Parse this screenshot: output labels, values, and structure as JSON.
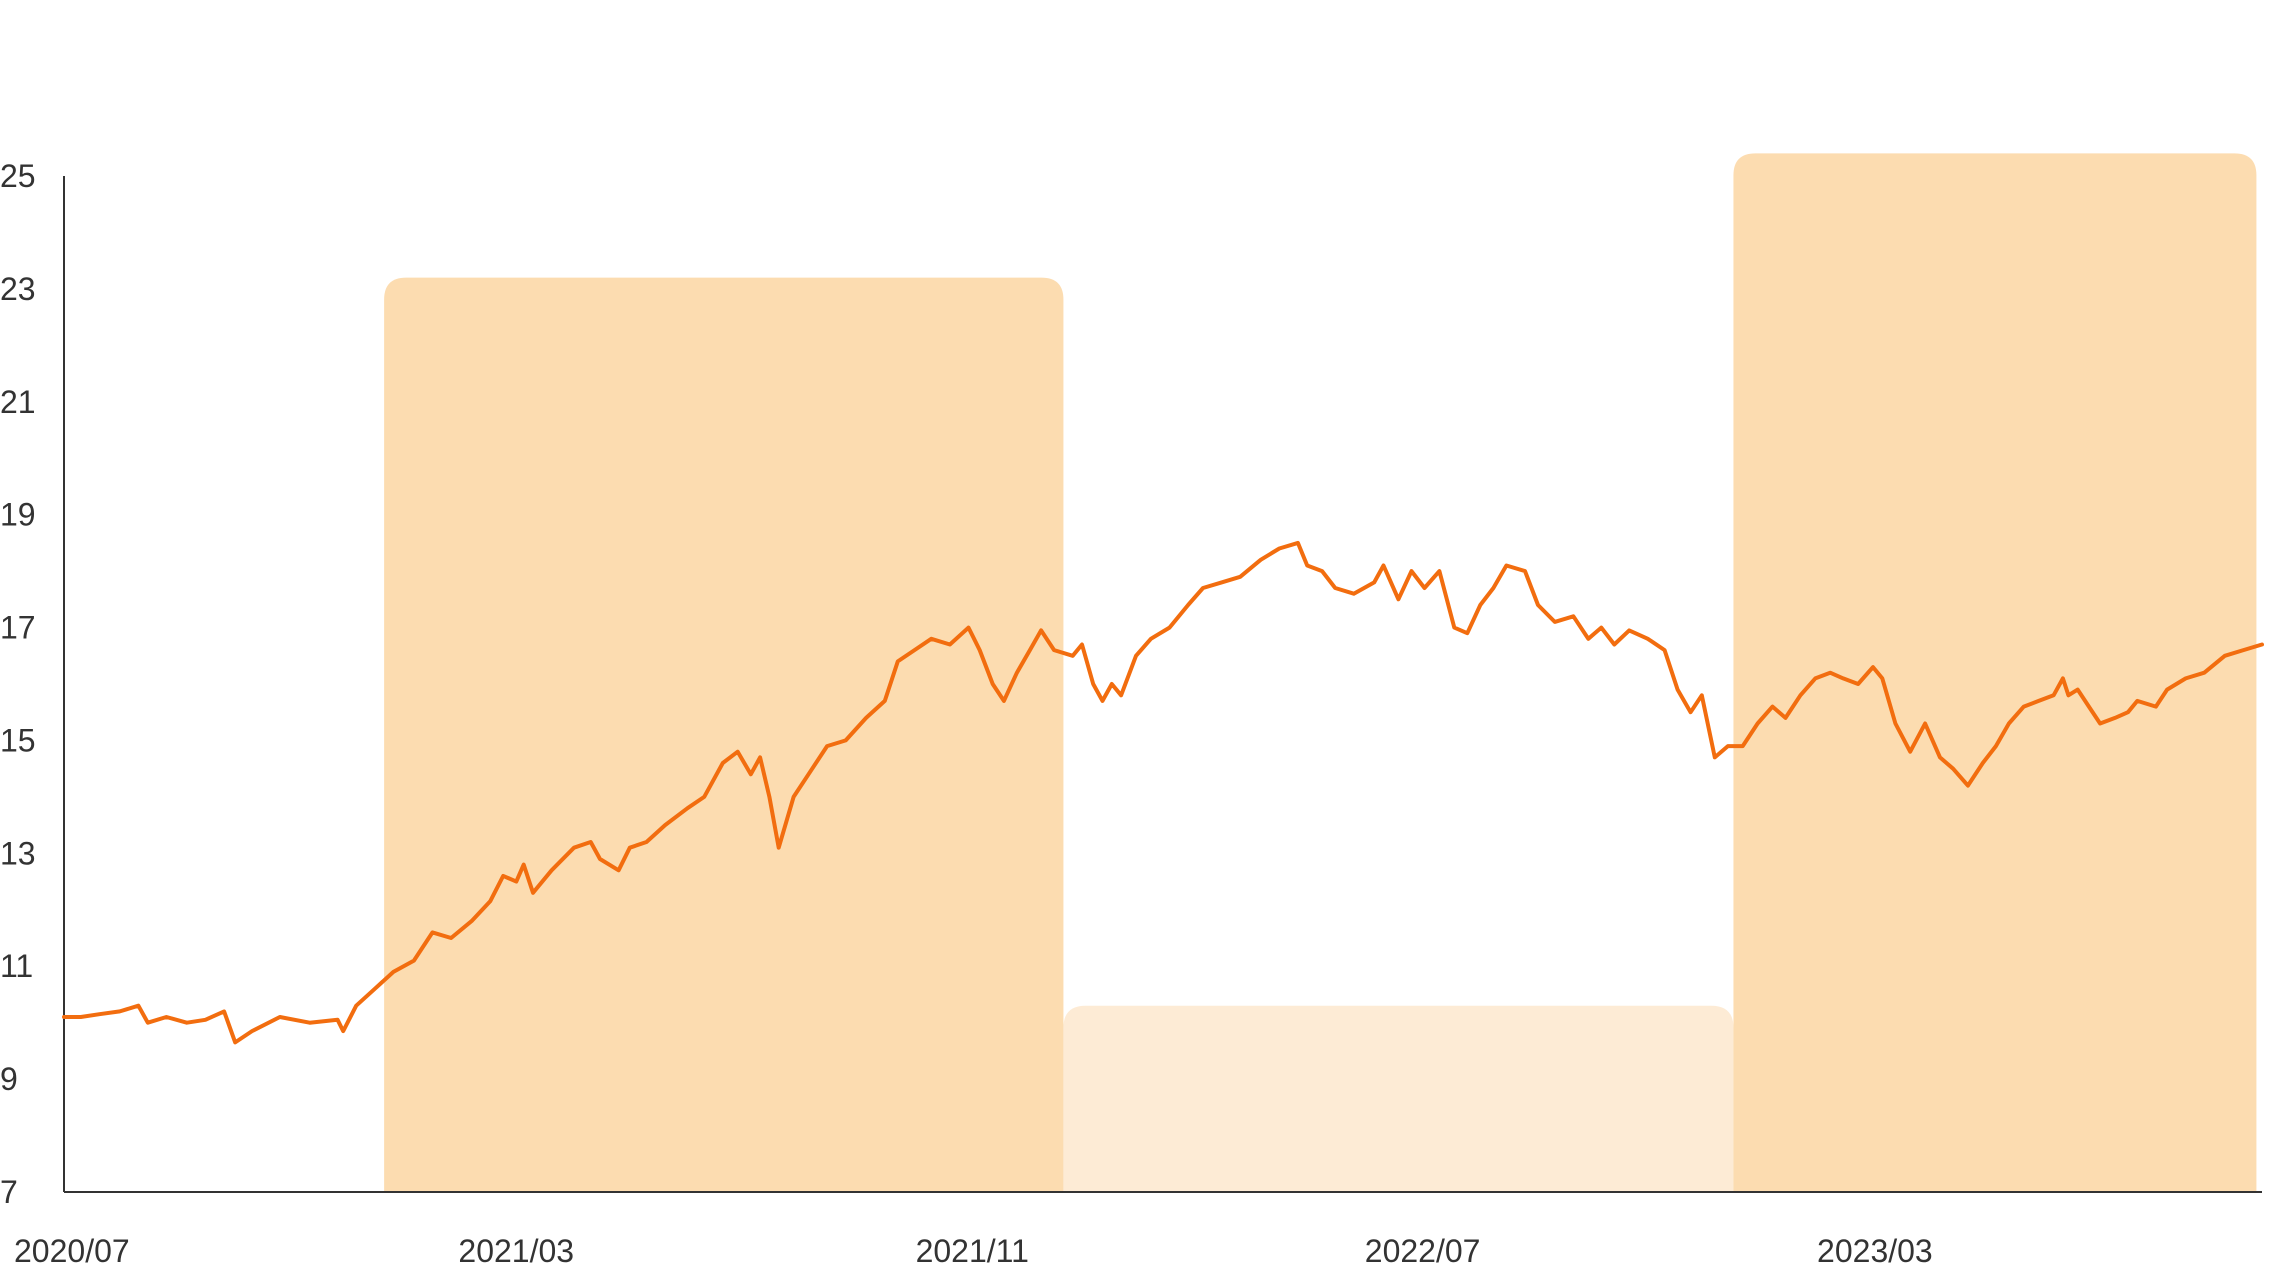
{
  "chart_data": {
    "type": "line",
    "title": "",
    "xlabel": "",
    "ylabel": "",
    "ylim": [
      7,
      25
    ],
    "y_ticks": [
      "25",
      "23",
      "21",
      "19",
      "17",
      "15",
      "13",
      "11",
      "9",
      "7"
    ],
    "x_ticks": [
      "2020/07",
      "2021/03",
      "2021/11",
      "2022/07",
      "2023/03"
    ],
    "x_range": [
      "2020-07-01",
      "2023-09-25"
    ],
    "grid": false,
    "legend": "none",
    "colors": {
      "line": "#f26d0f",
      "highlight_strong": "#fcdcb0",
      "highlight_light": "#fdebd5",
      "axis": "#333333",
      "text": "#333333"
    },
    "highlight_periods": [
      {
        "start": "2020-12-20",
        "end": "2021-12-20",
        "top": 23.2,
        "style": "strong"
      },
      {
        "start": "2021-12-20",
        "end": "2022-12-15",
        "top": 10.3,
        "style": "light"
      },
      {
        "start": "2022-12-15",
        "end": "2023-09-22",
        "top": 25.4,
        "style": "strong"
      }
    ],
    "series": [
      {
        "points": [
          [
            "2020-07-01",
            10.1
          ],
          [
            "2020-07-10",
            10.1
          ],
          [
            "2020-07-20",
            10.15
          ],
          [
            "2020-07-31",
            10.2
          ],
          [
            "2020-08-10",
            10.3
          ],
          [
            "2020-08-15",
            10.0
          ],
          [
            "2020-08-25",
            10.1
          ],
          [
            "2020-09-05",
            10.0
          ],
          [
            "2020-09-15",
            10.05
          ],
          [
            "2020-09-25",
            10.2
          ],
          [
            "2020-10-01",
            9.65
          ],
          [
            "2020-10-10",
            9.85
          ],
          [
            "2020-10-25",
            10.1
          ],
          [
            "2020-11-10",
            10.0
          ],
          [
            "2020-11-25",
            10.05
          ],
          [
            "2020-11-28",
            9.85
          ],
          [
            "2020-12-05",
            10.3
          ],
          [
            "2020-12-15",
            10.6
          ],
          [
            "2020-12-25",
            10.9
          ],
          [
            "2021-01-05",
            11.1
          ],
          [
            "2021-01-15",
            11.6
          ],
          [
            "2021-01-25",
            11.5
          ],
          [
            "2021-02-05",
            11.8
          ],
          [
            "2021-02-15",
            12.15
          ],
          [
            "2021-02-22",
            12.6
          ],
          [
            "2021-03-01",
            12.5
          ],
          [
            "2021-03-05",
            12.8
          ],
          [
            "2021-03-10",
            12.3
          ],
          [
            "2021-03-20",
            12.7
          ],
          [
            "2021-04-01",
            13.1
          ],
          [
            "2021-04-10",
            13.2
          ],
          [
            "2021-04-15",
            12.9
          ],
          [
            "2021-04-25",
            12.7
          ],
          [
            "2021-05-01",
            13.1
          ],
          [
            "2021-05-10",
            13.2
          ],
          [
            "2021-05-20",
            13.5
          ],
          [
            "2021-06-01",
            13.8
          ],
          [
            "2021-06-10",
            14.0
          ],
          [
            "2021-06-20",
            14.6
          ],
          [
            "2021-06-28",
            14.8
          ],
          [
            "2021-07-05",
            14.4
          ],
          [
            "2021-07-10",
            14.7
          ],
          [
            "2021-07-15",
            14.0
          ],
          [
            "2021-07-20",
            13.1
          ],
          [
            "2021-07-28",
            14.0
          ],
          [
            "2021-08-05",
            14.4
          ],
          [
            "2021-08-15",
            14.9
          ],
          [
            "2021-08-25",
            15.0
          ],
          [
            "2021-09-05",
            15.4
          ],
          [
            "2021-09-15",
            15.7
          ],
          [
            "2021-09-22",
            16.4
          ],
          [
            "2021-10-01",
            16.6
          ],
          [
            "2021-10-10",
            16.8
          ],
          [
            "2021-10-20",
            16.7
          ],
          [
            "2021-10-30",
            17.0
          ],
          [
            "2021-11-05",
            16.6
          ],
          [
            "2021-11-12",
            16.0
          ],
          [
            "2021-11-18",
            15.7
          ],
          [
            "2021-11-25",
            16.2
          ],
          [
            "2021-12-02",
            16.6
          ],
          [
            "2021-12-08",
            16.95
          ],
          [
            "2021-12-15",
            16.6
          ],
          [
            "2021-12-25",
            16.5
          ],
          [
            "2021-12-30",
            16.7
          ],
          [
            "2022-01-05",
            16.0
          ],
          [
            "2022-01-10",
            15.7
          ],
          [
            "2022-01-15",
            16.0
          ],
          [
            "2022-01-20",
            15.8
          ],
          [
            "2022-01-28",
            16.5
          ],
          [
            "2022-02-05",
            16.8
          ],
          [
            "2022-02-15",
            17.0
          ],
          [
            "2022-02-25",
            17.4
          ],
          [
            "2022-03-05",
            17.7
          ],
          [
            "2022-03-15",
            17.8
          ],
          [
            "2022-03-25",
            17.9
          ],
          [
            "2022-04-05",
            18.2
          ],
          [
            "2022-04-15",
            18.4
          ],
          [
            "2022-04-25",
            18.5
          ],
          [
            "2022-04-30",
            18.1
          ],
          [
            "2022-05-08",
            18.0
          ],
          [
            "2022-05-15",
            17.7
          ],
          [
            "2022-05-25",
            17.6
          ],
          [
            "2022-06-05",
            17.8
          ],
          [
            "2022-06-10",
            18.1
          ],
          [
            "2022-06-18",
            17.5
          ],
          [
            "2022-06-25",
            18.0
          ],
          [
            "2022-07-02",
            17.7
          ],
          [
            "2022-07-10",
            18.0
          ],
          [
            "2022-07-18",
            17.0
          ],
          [
            "2022-07-25",
            16.9
          ],
          [
            "2022-08-01",
            17.4
          ],
          [
            "2022-08-08",
            17.7
          ],
          [
            "2022-08-15",
            18.1
          ],
          [
            "2022-08-25",
            18.0
          ],
          [
            "2022-09-01",
            17.4
          ],
          [
            "2022-09-10",
            17.1
          ],
          [
            "2022-09-20",
            17.2
          ],
          [
            "2022-09-28",
            16.8
          ],
          [
            "2022-10-05",
            17.0
          ],
          [
            "2022-10-12",
            16.7
          ],
          [
            "2022-10-20",
            16.95
          ],
          [
            "2022-10-30",
            16.8
          ],
          [
            "2022-11-08",
            16.6
          ],
          [
            "2022-11-15",
            15.9
          ],
          [
            "2022-11-22",
            15.5
          ],
          [
            "2022-11-28",
            15.8
          ],
          [
            "2022-12-05",
            14.7
          ],
          [
            "2022-12-12",
            14.9
          ],
          [
            "2022-12-20",
            14.9
          ],
          [
            "2022-12-28",
            15.3
          ],
          [
            "2023-01-05",
            15.6
          ],
          [
            "2023-01-12",
            15.4
          ],
          [
            "2023-01-20",
            15.8
          ],
          [
            "2023-01-28",
            16.1
          ],
          [
            "2023-02-05",
            16.2
          ],
          [
            "2023-02-12",
            16.1
          ],
          [
            "2023-02-20",
            16.0
          ],
          [
            "2023-02-28",
            16.3
          ],
          [
            "2023-03-05",
            16.1
          ],
          [
            "2023-03-12",
            15.3
          ],
          [
            "2023-03-20",
            14.8
          ],
          [
            "2023-03-28",
            15.3
          ],
          [
            "2023-04-05",
            14.7
          ],
          [
            "2023-04-12",
            14.5
          ],
          [
            "2023-04-20",
            14.2
          ],
          [
            "2023-04-28",
            14.6
          ],
          [
            "2023-05-05",
            14.9
          ],
          [
            "2023-05-12",
            15.3
          ],
          [
            "2023-05-20",
            15.6
          ],
          [
            "2023-05-28",
            15.7
          ],
          [
            "2023-06-05",
            15.8
          ],
          [
            "2023-06-10",
            16.1
          ],
          [
            "2023-06-13",
            15.8
          ],
          [
            "2023-06-18",
            15.9
          ],
          [
            "2023-06-24",
            15.6
          ],
          [
            "2023-06-30",
            15.3
          ],
          [
            "2023-07-08",
            15.4
          ],
          [
            "2023-07-15",
            15.5
          ],
          [
            "2023-07-20",
            15.7
          ],
          [
            "2023-07-30",
            15.6
          ],
          [
            "2023-08-05",
            15.9
          ],
          [
            "2023-08-15",
            16.1
          ],
          [
            "2023-08-25",
            16.2
          ],
          [
            "2023-09-05",
            16.5
          ],
          [
            "2023-09-15",
            16.6
          ],
          [
            "2023-09-25",
            16.7
          ]
        ]
      }
    ]
  }
}
